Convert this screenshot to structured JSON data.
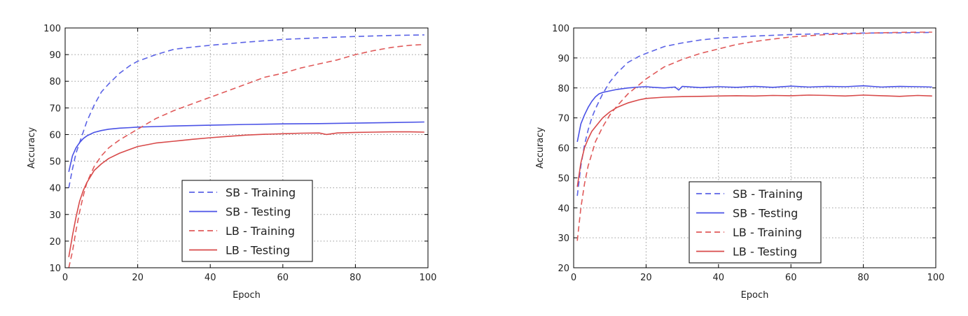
{
  "chart_data": [
    {
      "type": "line",
      "xlabel": "Epoch",
      "ylabel": "Accuracy",
      "xlim": [
        0,
        100
      ],
      "ylim": [
        10,
        100
      ],
      "xticks": [
        0,
        20,
        40,
        60,
        80,
        100
      ],
      "yticks": [
        10,
        20,
        30,
        40,
        50,
        60,
        70,
        80,
        90,
        100
      ],
      "grid": true,
      "legend_position": "lower-center",
      "series": [
        {
          "name": "SB - Training",
          "color": "#5b63e6",
          "style": "dashed",
          "x": [
            1,
            2,
            3,
            4,
            5,
            6,
            8,
            10,
            12,
            15,
            18,
            20,
            25,
            30,
            35,
            40,
            50,
            60,
            70,
            80,
            90,
            99
          ],
          "y": [
            40,
            47,
            53,
            57,
            61,
            65,
            71,
            76,
            79,
            83,
            86,
            87.5,
            90,
            92,
            92.8,
            93.5,
            94.7,
            95.7,
            96.3,
            96.8,
            97.2,
            97.4
          ]
        },
        {
          "name": "SB - Testing",
          "color": "#4a52e6",
          "style": "solid",
          "x": [
            1,
            2,
            3,
            4,
            5,
            6,
            8,
            10,
            12,
            15,
            18,
            20,
            25,
            30,
            40,
            50,
            60,
            70,
            80,
            90,
            99
          ],
          "y": [
            46,
            52,
            55,
            57,
            58.5,
            59.5,
            60.8,
            61.5,
            62,
            62.4,
            62.6,
            62.8,
            63,
            63.2,
            63.5,
            63.8,
            64,
            64.1,
            64.3,
            64.5,
            64.7
          ]
        },
        {
          "name": "LB - Training",
          "color": "#e05a5a",
          "style": "dashed",
          "x": [
            1,
            2,
            3,
            4,
            5,
            6,
            8,
            10,
            12,
            15,
            20,
            25,
            30,
            35,
            40,
            45,
            50,
            55,
            60,
            65,
            70,
            75,
            80,
            85,
            90,
            95,
            99
          ],
          "y": [
            10,
            16,
            24,
            31,
            37,
            42,
            48,
            52,
            55,
            58,
            62,
            66,
            69,
            71.5,
            74,
            76.5,
            79,
            81.5,
            83,
            85,
            86.5,
            88,
            90,
            91.5,
            92.7,
            93.5,
            93.8
          ]
        },
        {
          "name": "LB - Testing",
          "color": "#d84a4a",
          "style": "solid",
          "x": [
            1,
            2,
            3,
            4,
            5,
            6,
            8,
            10,
            12,
            15,
            18,
            20,
            25,
            30,
            35,
            40,
            45,
            50,
            55,
            60,
            65,
            70,
            72,
            75,
            80,
            85,
            90,
            95,
            99
          ],
          "y": [
            14,
            22,
            29,
            35,
            39,
            42,
            46.5,
            49,
            51,
            53,
            54.5,
            55.5,
            56.8,
            57.5,
            58.2,
            58.8,
            59.3,
            59.8,
            60.1,
            60.3,
            60.5,
            60.6,
            60,
            60.6,
            60.8,
            60.9,
            61,
            61,
            60.9
          ]
        }
      ]
    },
    {
      "type": "line",
      "xlabel": "Epoch",
      "ylabel": "Accuracy",
      "xlim": [
        0,
        100
      ],
      "ylim": [
        20,
        100
      ],
      "xticks": [
        0,
        20,
        40,
        60,
        80,
        100
      ],
      "yticks": [
        20,
        30,
        40,
        50,
        60,
        70,
        80,
        90,
        100
      ],
      "grid": true,
      "legend_position": "lower-center",
      "series": [
        {
          "name": "SB - Training",
          "color": "#5b63e6",
          "style": "dashed",
          "x": [
            1,
            2,
            3,
            4,
            5,
            6,
            8,
            10,
            12,
            15,
            18,
            20,
            25,
            30,
            35,
            40,
            50,
            60,
            70,
            80,
            90,
            99
          ],
          "y": [
            44,
            54,
            61,
            66,
            70,
            73,
            78,
            82,
            85,
            88.5,
            90.5,
            91.5,
            93.8,
            95,
            96,
            96.6,
            97.3,
            97.8,
            98.1,
            98.3,
            98.4,
            98.5
          ]
        },
        {
          "name": "SB - Testing",
          "color": "#4a52e6",
          "style": "solid",
          "x": [
            1,
            2,
            3,
            4,
            5,
            6,
            7,
            8,
            10,
            12,
            15,
            18,
            20,
            22,
            25,
            28,
            29,
            30,
            35,
            40,
            45,
            50,
            55,
            60,
            65,
            70,
            75,
            80,
            85,
            90,
            95,
            99
          ],
          "y": [
            62,
            68,
            71,
            73.5,
            75.5,
            77,
            78,
            78.5,
            79,
            79.5,
            80,
            80.3,
            80.4,
            80.2,
            80,
            80.3,
            79.3,
            80.5,
            80.1,
            80.4,
            80.2,
            80.5,
            80.2,
            80.6,
            80.3,
            80.5,
            80.4,
            80.7,
            80.3,
            80.5,
            80.4,
            80.3
          ]
        },
        {
          "name": "LB - Training",
          "color": "#e05a5a",
          "style": "dashed",
          "x": [
            1,
            2,
            3,
            4,
            5,
            6,
            8,
            10,
            12,
            15,
            18,
            20,
            25,
            30,
            35,
            40,
            45,
            50,
            55,
            60,
            65,
            70,
            75,
            80,
            85,
            90,
            95,
            99
          ],
          "y": [
            29,
            40,
            48,
            54,
            58,
            62,
            67,
            71,
            74,
            78,
            81,
            83,
            87,
            89.5,
            91.5,
            93,
            94.5,
            95.5,
            96.3,
            97,
            97.4,
            97.8,
            98,
            98.2,
            98.4,
            98.5,
            98.6,
            98.6
          ]
        },
        {
          "name": "LB - Testing",
          "color": "#d84a4a",
          "style": "solid",
          "x": [
            1,
            2,
            3,
            4,
            5,
            6,
            8,
            10,
            12,
            15,
            18,
            20,
            25,
            30,
            35,
            40,
            45,
            50,
            55,
            60,
            65,
            70,
            75,
            80,
            85,
            90,
            95,
            99
          ],
          "y": [
            47,
            55,
            60,
            63,
            65.5,
            67,
            70,
            72,
            73.5,
            75,
            76,
            76.5,
            76.9,
            77.1,
            77.2,
            77.3,
            77.4,
            77.3,
            77.5,
            77.4,
            77.6,
            77.5,
            77.3,
            77.6,
            77.4,
            77.2,
            77.5,
            77.3
          ]
        }
      ]
    }
  ]
}
